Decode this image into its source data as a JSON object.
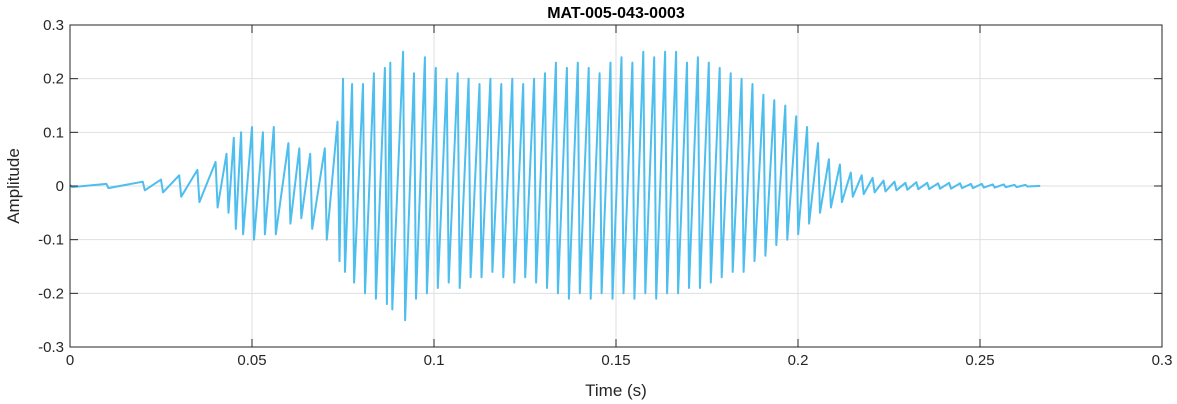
{
  "chart_data": {
    "type": "line",
    "title": "MAT-005-043-0003",
    "xlabel": "Time (s)",
    "ylabel": "Amplitude",
    "xlim": [
      0,
      0.3
    ],
    "ylim": [
      -0.3,
      0.3
    ],
    "grid": true,
    "x_ticks": [
      0,
      0.05,
      0.1,
      0.15,
      0.2,
      0.25,
      0.3
    ],
    "x_tick_labels": [
      "0",
      "0.05",
      "0.1",
      "0.15",
      "0.2",
      "0.25",
      "0.3"
    ],
    "y_ticks": [
      -0.3,
      -0.2,
      -0.1,
      0,
      0.1,
      0.2,
      0.3
    ],
    "y_tick_labels": [
      "-0.3",
      "-0.2",
      "-0.1",
      "0",
      "0.1",
      "0.2",
      "0.3"
    ],
    "colors": {
      "series": "#4DBEEE",
      "axis": "#262626",
      "grid": "#DFDFDF"
    },
    "series": [
      {
        "x": [
          0,
          0.01,
          0.02,
          0.025,
          0.03,
          0.035,
          0.04,
          0.043,
          0.045,
          0.047,
          0.05,
          0.053,
          0.056,
          0.06,
          0.063,
          0.066,
          0.07,
          0.0735,
          0.075,
          0.0775,
          0.0805,
          0.0835,
          0.0865,
          0.088,
          0.0915,
          0.0945,
          0.0975,
          0.1005,
          0.1035,
          0.1065,
          0.1095,
          0.1125,
          0.1155,
          0.1185,
          0.1215,
          0.1245,
          0.1275,
          0.1305,
          0.1335,
          0.1365,
          0.1395,
          0.1425,
          0.1455,
          0.1485,
          0.1515,
          0.1545,
          0.1575,
          0.1605,
          0.1635,
          0.1665,
          0.1695,
          0.1725,
          0.1755,
          0.1785,
          0.1815,
          0.1845,
          0.1875,
          0.1905,
          0.1935,
          0.1965,
          0.1995,
          0.2025,
          0.2055,
          0.2085,
          0.2115,
          0.2145,
          0.2175,
          0.2205,
          0.2235,
          0.2265,
          0.2295,
          0.2325,
          0.2355,
          0.2385,
          0.2415,
          0.2445,
          0.2475,
          0.2505,
          0.2535,
          0.2565,
          0.2595,
          0.2625,
          0.266
        ],
        "max": [
          0.002,
          0.004,
          0.008,
          0.012,
          0.02,
          0.03,
          0.045,
          0.06,
          0.09,
          0.1,
          0.11,
          0.1,
          0.11,
          0.08,
          0.07,
          0.06,
          0.07,
          0.12,
          0.2,
          0.19,
          0.19,
          0.21,
          0.22,
          0.23,
          0.25,
          0.21,
          0.24,
          0.22,
          0.2,
          0.21,
          0.2,
          0.19,
          0.2,
          0.19,
          0.2,
          0.19,
          0.2,
          0.21,
          0.23,
          0.22,
          0.23,
          0.22,
          0.21,
          0.23,
          0.24,
          0.23,
          0.25,
          0.24,
          0.25,
          0.25,
          0.23,
          0.24,
          0.23,
          0.22,
          0.21,
          0.2,
          0.19,
          0.17,
          0.16,
          0.15,
          0.13,
          0.11,
          0.08,
          0.05,
          0.04,
          0.025,
          0.02,
          0.015,
          0.01,
          0.008,
          0.006,
          0.007,
          0.006,
          0.005,
          0.006,
          0.005,
          0.004,
          0.004,
          0.003,
          0.003,
          0.002,
          0.002,
          0.0
        ],
        "min": [
          -0.002,
          -0.004,
          -0.008,
          -0.012,
          -0.02,
          -0.03,
          -0.04,
          -0.05,
          -0.08,
          -0.09,
          -0.1,
          -0.09,
          -0.09,
          -0.07,
          -0.06,
          -0.08,
          -0.1,
          -0.14,
          -0.16,
          -0.18,
          -0.2,
          -0.21,
          -0.22,
          -0.23,
          -0.25,
          -0.21,
          -0.2,
          -0.19,
          -0.18,
          -0.19,
          -0.17,
          -0.17,
          -0.16,
          -0.17,
          -0.18,
          -0.17,
          -0.18,
          -0.19,
          -0.2,
          -0.21,
          -0.2,
          -0.21,
          -0.2,
          -0.21,
          -0.2,
          -0.21,
          -0.2,
          -0.21,
          -0.2,
          -0.2,
          -0.19,
          -0.19,
          -0.18,
          -0.17,
          -0.16,
          -0.16,
          -0.14,
          -0.13,
          -0.11,
          -0.1,
          -0.09,
          -0.07,
          -0.05,
          -0.04,
          -0.03,
          -0.02,
          -0.015,
          -0.012,
          -0.01,
          -0.008,
          -0.007,
          -0.006,
          -0.006,
          -0.005,
          -0.005,
          -0.004,
          -0.004,
          -0.003,
          -0.003,
          -0.002,
          -0.002,
          -0.001,
          0.0
        ]
      }
    ]
  }
}
